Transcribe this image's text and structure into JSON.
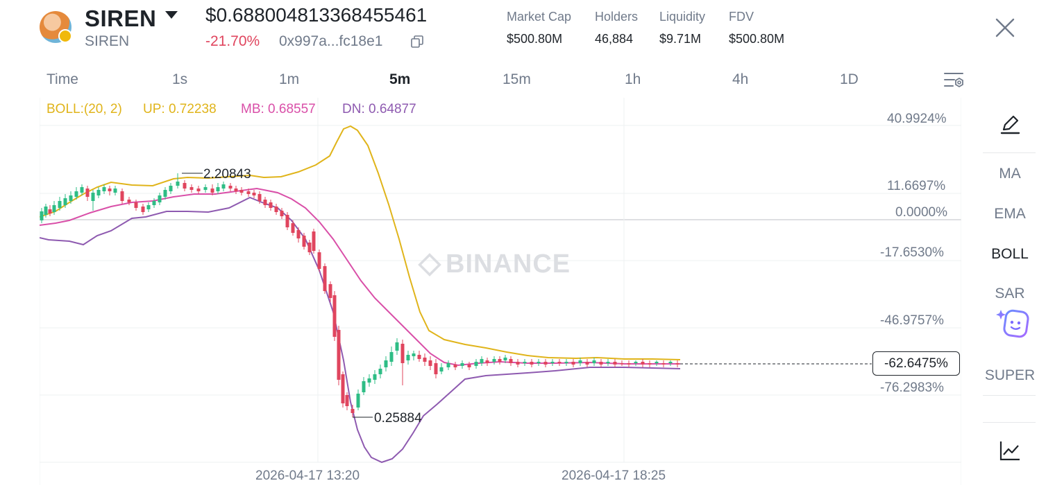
{
  "header": {
    "symbol": "SIREN",
    "name": "SIREN",
    "price": "$0.688004813368455461",
    "change": "-21.70%",
    "address": "0x997a...fc18e1",
    "stats": [
      {
        "label": "Market Cap",
        "value": "$500.80M"
      },
      {
        "label": "Holders",
        "value": "46,884"
      },
      {
        "label": "Liquidity",
        "value": "$9.71M"
      },
      {
        "label": "FDV",
        "value": "$500.80M"
      }
    ]
  },
  "timeframes": [
    "Time",
    "1s",
    "1m",
    "5m",
    "15m",
    "1h",
    "4h",
    "1D"
  ],
  "active_timeframe": "5m",
  "indicator": {
    "name": "BOLL:(20, 2)",
    "up": "UP: 0.72238",
    "mb": "MB: 0.68557",
    "dn": "DN: 0.64877",
    "colors": {
      "up": "#e0b41a",
      "mb": "#d94fa8",
      "dn": "#8e5ab0"
    }
  },
  "y_axis_labels": [
    "40.9924%",
    "11.6697%",
    "0.0000%",
    "-17.6530%",
    "-46.9757%",
    "-76.2983%"
  ],
  "current_value": "-62.6475%",
  "x_axis_labels": [
    "2026-04-17 13:20",
    "2026-04-17 18:25"
  ],
  "annotations": {
    "high": "2.20843",
    "low": "0.25884"
  },
  "watermark": "BINANCE",
  "sidebar": {
    "items": [
      "MA",
      "EMA",
      "BOLL",
      "SAR",
      "SUPER"
    ],
    "active": "BOLL"
  },
  "colors": {
    "up_candle": "#2ebd85",
    "down_candle": "#e0455e",
    "accent": "#f0b90b"
  }
}
